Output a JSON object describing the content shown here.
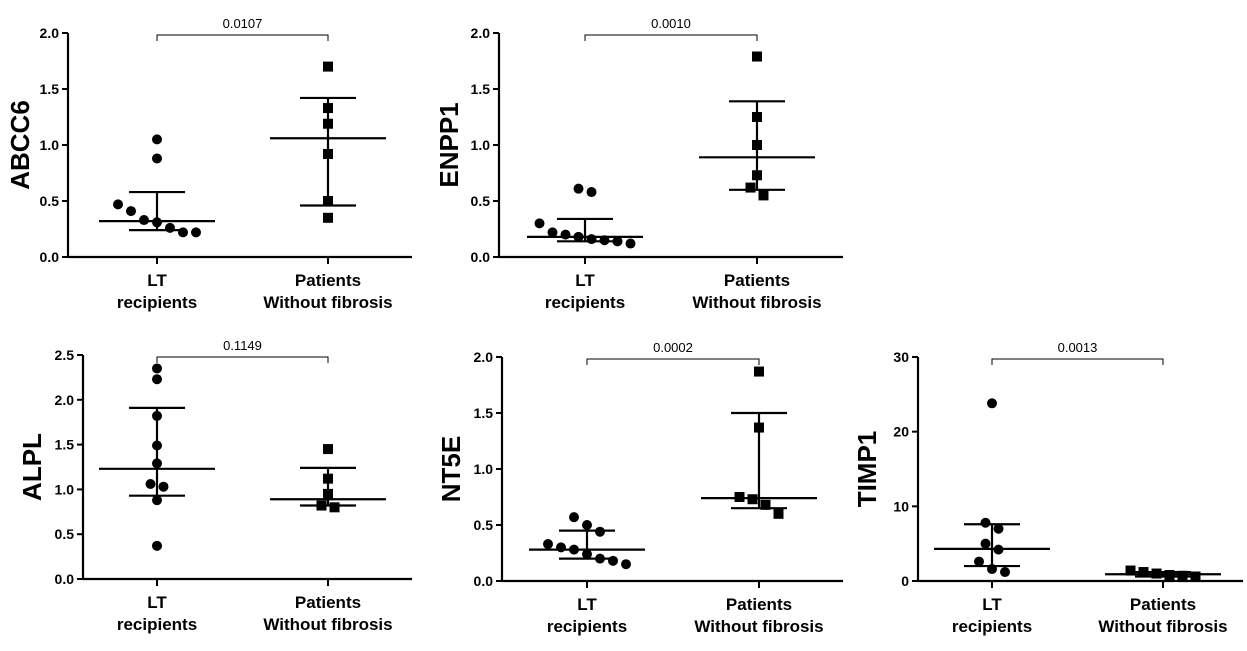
{
  "chart_data": [
    {
      "type": "scatter",
      "ylabel": "ABCC6",
      "ylim": [
        0,
        2.0
      ],
      "yticks": [
        "0.0",
        "0.5",
        "1.0",
        "1.5",
        "2.0"
      ],
      "categories": [
        [
          "LT",
          "recipients"
        ],
        [
          "Patients",
          "Without fibrosis"
        ]
      ],
      "groups": [
        {
          "marker": "circle",
          "values": [
            1.05,
            0.88,
            0.47,
            0.41,
            0.33,
            0.31,
            0.26,
            0.22,
            0.22
          ],
          "center": 0.32,
          "err_low": 0.24,
          "err_high": 0.58
        },
        {
          "marker": "square",
          "values": [
            1.7,
            1.33,
            1.19,
            0.92,
            0.5,
            0.35
          ],
          "center": 1.06,
          "err_low": 0.46,
          "err_high": 1.42
        }
      ],
      "p_value": "0.0107"
    },
    {
      "type": "scatter",
      "ylabel": "ENPP1",
      "ylim": [
        0,
        2.0
      ],
      "yticks": [
        "0.0",
        "0.5",
        "1.0",
        "1.5",
        "2.0"
      ],
      "categories": [
        [
          "LT",
          "recipients"
        ],
        [
          "Patients",
          "Without fibrosis"
        ]
      ],
      "groups": [
        {
          "marker": "circle",
          "values": [
            0.61,
            0.58,
            0.3,
            0.22,
            0.2,
            0.18,
            0.16,
            0.15,
            0.14,
            0.12
          ],
          "center": 0.18,
          "err_low": 0.14,
          "err_high": 0.34
        },
        {
          "marker": "square",
          "values": [
            1.79,
            1.25,
            1.0,
            0.73,
            0.62,
            0.55
          ],
          "center": 0.89,
          "err_low": 0.6,
          "err_high": 1.39
        }
      ],
      "p_value": "0.0010"
    },
    {
      "type": "scatter",
      "ylabel": "ALPL",
      "ylim": [
        0,
        2.5
      ],
      "yticks": [
        "0.0",
        "0.5",
        "1.0",
        "1.5",
        "2.0",
        "2.5"
      ],
      "categories": [
        [
          "LT",
          "recipients"
        ],
        [
          "Patients",
          "Without fibrosis"
        ]
      ],
      "groups": [
        {
          "marker": "circle",
          "values": [
            2.35,
            2.23,
            1.82,
            1.49,
            1.29,
            1.06,
            1.03,
            0.88,
            0.37
          ],
          "center": 1.23,
          "err_low": 0.93,
          "err_high": 1.91
        },
        {
          "marker": "square",
          "values": [
            1.45,
            1.12,
            0.95,
            0.82,
            0.8
          ],
          "center": 0.89,
          "err_low": 0.82,
          "err_high": 1.24
        }
      ],
      "p_value": "0.1149"
    },
    {
      "type": "scatter",
      "ylabel": "NT5E",
      "ylim": [
        0,
        2.0
      ],
      "yticks": [
        "0.0",
        "0.5",
        "1.0",
        "1.5",
        "2.0"
      ],
      "categories": [
        [
          "LT",
          "recipients"
        ],
        [
          "Patients",
          "Without fibrosis"
        ]
      ],
      "groups": [
        {
          "marker": "circle",
          "values": [
            0.57,
            0.5,
            0.44,
            0.33,
            0.3,
            0.28,
            0.24,
            0.2,
            0.18,
            0.15
          ],
          "center": 0.28,
          "err_low": 0.2,
          "err_high": 0.45
        },
        {
          "marker": "square",
          "values": [
            1.87,
            1.37,
            0.75,
            0.73,
            0.68,
            0.6
          ],
          "center": 0.74,
          "err_low": 0.65,
          "err_high": 1.5
        }
      ],
      "p_value": "0.0002"
    },
    {
      "type": "scatter",
      "ylabel": "TIMP1",
      "ylim": [
        0,
        30
      ],
      "yticks": [
        "0",
        "10",
        "20",
        "30"
      ],
      "categories": [
        [
          "LT",
          "recipients"
        ],
        [
          "Patients",
          "Without fibrosis"
        ]
      ],
      "groups": [
        {
          "marker": "circle",
          "values": [
            23.8,
            7.8,
            7.0,
            5.0,
            4.2,
            2.6,
            1.6,
            1.2
          ],
          "center": 4.3,
          "err_low": 2.0,
          "err_high": 7.6
        },
        {
          "marker": "square",
          "values": [
            1.4,
            1.2,
            1.0,
            0.8,
            0.7,
            0.6
          ],
          "center": 0.9,
          "err_low": 0.6,
          "err_high": 1.2
        }
      ],
      "p_value": "0.0013"
    }
  ]
}
